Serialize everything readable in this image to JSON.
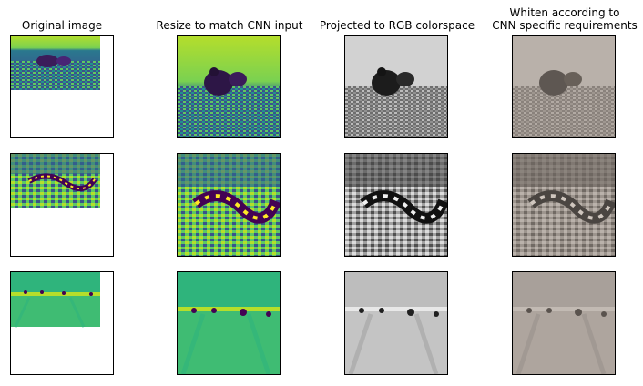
{
  "titles": {
    "original": "Original image",
    "resize": "Resize to match CNN input",
    "rgb": "Projected to RGB colorspace",
    "whiten_line1": "Whiten according to",
    "whiten_line2": "CNN specific requirements"
  },
  "rows": [
    {
      "subject": "rodent on bedding"
    },
    {
      "subject": "snake on bedding"
    },
    {
      "subject": "insects on arena floor"
    }
  ],
  "colors": {
    "viridis_low": "#440154",
    "viridis_mid": "#21918c",
    "viridis_high": "#fde725",
    "gray_bg": "#c8c8c8",
    "whiten_tint": "#b4aba4"
  }
}
